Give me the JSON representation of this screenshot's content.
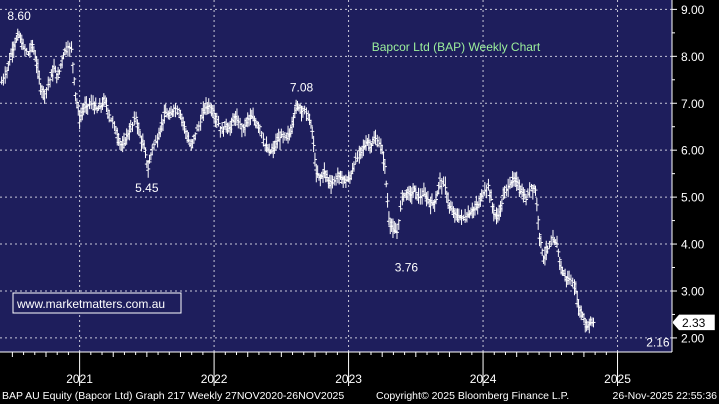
{
  "chart_data": {
    "type": "line",
    "title": "Bapcor Ltd (BAP) Weekly Chart",
    "watermark": "www.marketmatters.com.au",
    "ylim": [
      1.7,
      9.2
    ],
    "y_ticks": [
      "9.00",
      "8.00",
      "7.00",
      "6.00",
      "5.00",
      "4.00",
      "3.00",
      "2.00"
    ],
    "y_tick_values": [
      9,
      8,
      7,
      6,
      5,
      4,
      3,
      2
    ],
    "x_ticks": [
      "2021",
      "2022",
      "2023",
      "2024",
      "2025"
    ],
    "x_tick_positions": [
      2021.5,
      2022.5,
      2023.5,
      2024.5,
      2025.5
    ],
    "xlim": [
      2020.908,
      2025.905
    ],
    "last_price": "2.33",
    "last_value": 2.33,
    "annotations": [
      {
        "text": "8.60",
        "x": 2021.05,
        "value": 8.6
      },
      {
        "text": "5.45",
        "x": 2022.0,
        "value": 5.45
      },
      {
        "text": "7.08",
        "x": 2023.15,
        "value": 7.08
      },
      {
        "text": "3.76",
        "x": 2023.93,
        "value": 3.76
      },
      {
        "text": "2.16",
        "x": 2025.8,
        "value": 2.16
      }
    ],
    "series": [
      {
        "values": [
          [
            2020.92,
            7.45
          ],
          [
            2020.96,
            7.7
          ],
          [
            2020.99,
            8.05
          ],
          [
            2021.02,
            8.3
          ],
          [
            2021.05,
            8.45
          ],
          [
            2021.08,
            8.2
          ],
          [
            2021.12,
            8.05
          ],
          [
            2021.15,
            8.25
          ],
          [
            2021.18,
            7.85
          ],
          [
            2021.21,
            7.35
          ],
          [
            2021.24,
            7.2
          ],
          [
            2021.28,
            7.5
          ],
          [
            2021.31,
            7.75
          ],
          [
            2021.34,
            7.55
          ],
          [
            2021.37,
            7.95
          ],
          [
            2021.4,
            8.2
          ],
          [
            2021.44,
            8.15
          ],
          [
            2021.47,
            7.2
          ],
          [
            2021.5,
            6.65
          ],
          [
            2021.53,
            6.9
          ],
          [
            2021.56,
            6.95
          ],
          [
            2021.6,
            7.0
          ],
          [
            2021.63,
            6.85
          ],
          [
            2021.66,
            6.95
          ],
          [
            2021.69,
            7.05
          ],
          [
            2021.72,
            6.75
          ],
          [
            2021.76,
            6.5
          ],
          [
            2021.79,
            6.25
          ],
          [
            2021.82,
            6.05
          ],
          [
            2021.85,
            6.3
          ],
          [
            2021.88,
            6.45
          ],
          [
            2021.92,
            6.7
          ],
          [
            2021.95,
            6.3
          ],
          [
            2021.98,
            6.05
          ],
          [
            2022.01,
            5.6
          ],
          [
            2022.04,
            6.05
          ],
          [
            2022.08,
            6.25
          ],
          [
            2022.11,
            6.55
          ],
          [
            2022.14,
            6.8
          ],
          [
            2022.17,
            6.7
          ],
          [
            2022.2,
            6.9
          ],
          [
            2022.24,
            6.85
          ],
          [
            2022.27,
            6.6
          ],
          [
            2022.3,
            6.3
          ],
          [
            2022.33,
            6.05
          ],
          [
            2022.36,
            6.35
          ],
          [
            2022.4,
            6.6
          ],
          [
            2022.43,
            6.9
          ],
          [
            2022.46,
            6.95
          ],
          [
            2022.49,
            6.85
          ],
          [
            2022.52,
            6.65
          ],
          [
            2022.56,
            6.4
          ],
          [
            2022.59,
            6.55
          ],
          [
            2022.62,
            6.45
          ],
          [
            2022.65,
            6.7
          ],
          [
            2022.68,
            6.6
          ],
          [
            2022.72,
            6.45
          ],
          [
            2022.75,
            6.65
          ],
          [
            2022.78,
            6.7
          ],
          [
            2022.81,
            6.6
          ],
          [
            2022.84,
            6.5
          ],
          [
            2022.88,
            6.1
          ],
          [
            2022.91,
            5.95
          ],
          [
            2022.94,
            6.0
          ],
          [
            2022.97,
            6.2
          ],
          [
            2023.0,
            6.3
          ],
          [
            2023.04,
            6.25
          ],
          [
            2023.07,
            6.4
          ],
          [
            2023.1,
            6.85
          ],
          [
            2023.13,
            6.95
          ],
          [
            2023.16,
            6.85
          ],
          [
            2023.2,
            6.75
          ],
          [
            2023.23,
            6.4
          ],
          [
            2023.26,
            5.5
          ],
          [
            2023.29,
            5.4
          ],
          [
            2023.32,
            5.55
          ],
          [
            2023.35,
            5.35
          ],
          [
            2023.38,
            5.3
          ],
          [
            2023.42,
            5.45
          ],
          [
            2023.45,
            5.4
          ],
          [
            2023.48,
            5.35
          ],
          [
            2023.51,
            5.4
          ],
          [
            2023.54,
            5.7
          ],
          [
            2023.58,
            5.9
          ],
          [
            2023.61,
            6.05
          ],
          [
            2023.64,
            6.2
          ],
          [
            2023.67,
            6.1
          ],
          [
            2023.7,
            6.25
          ],
          [
            2023.74,
            6.1
          ],
          [
            2023.77,
            5.65
          ],
          [
            2023.8,
            4.55
          ],
          [
            2023.83,
            4.3
          ],
          [
            2023.86,
            4.25
          ],
          [
            2023.9,
            5.0
          ],
          [
            2023.93,
            5.1
          ],
          [
            2023.96,
            5.05
          ],
          [
            2023.99,
            5.15
          ],
          [
            2024.02,
            5.0
          ],
          [
            2024.06,
            5.05
          ],
          [
            2024.09,
            4.95
          ],
          [
            2024.12,
            4.85
          ],
          [
            2024.15,
            4.95
          ],
          [
            2024.18,
            5.35
          ],
          [
            2024.22,
            5.2
          ],
          [
            2024.25,
            4.8
          ],
          [
            2024.28,
            4.65
          ],
          [
            2024.31,
            4.6
          ],
          [
            2024.34,
            4.55
          ],
          [
            2024.38,
            4.6
          ],
          [
            2024.41,
            4.7
          ],
          [
            2024.44,
            4.75
          ],
          [
            2024.47,
            4.85
          ],
          [
            2024.5,
            5.1
          ],
          [
            2024.54,
            5.25
          ],
          [
            2024.57,
            4.8
          ],
          [
            2024.6,
            4.55
          ],
          [
            2024.63,
            4.75
          ],
          [
            2024.66,
            5.1
          ],
          [
            2024.7,
            5.3
          ],
          [
            2024.73,
            5.35
          ],
          [
            2024.76,
            5.3
          ],
          [
            2024.79,
            5.1
          ],
          [
            2024.82,
            4.95
          ],
          [
            2024.86,
            5.25
          ],
          [
            2024.89,
            5.15
          ],
          [
            2024.92,
            4.2
          ],
          [
            2024.95,
            3.7
          ],
          [
            2024.98,
            3.9
          ],
          [
            2025.02,
            4.05
          ],
          [
            2025.05,
            4.0
          ],
          [
            2025.08,
            3.5
          ],
          [
            2025.11,
            3.3
          ],
          [
            2025.14,
            3.25
          ],
          [
            2025.18,
            3.15
          ],
          [
            2025.21,
            2.65
          ],
          [
            2025.24,
            2.5
          ],
          [
            2025.27,
            2.25
          ],
          [
            2025.3,
            2.33
          ]
        ]
      }
    ],
    "footer": {
      "left": "BAP AU Equity (Bapcor Ltd) Graph 217 Weekly 27NOV2020-26NOV2025",
      "center": "Copyright© 2025 Bloomberg Finance L.P.",
      "right": "26-Nov-2025 22:55:36"
    },
    "colors": {
      "plot_bg": "#1e1e5c",
      "grid": "#c8c8d8",
      "bars": "#ffffff",
      "title": "#9cf09c",
      "axis_bg": "#000000"
    }
  }
}
